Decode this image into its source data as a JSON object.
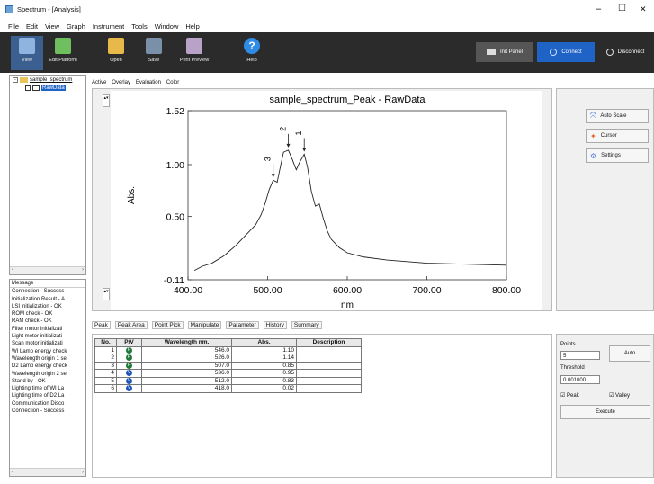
{
  "window": {
    "title": "Spectrum - [Analysis]",
    "min": "–",
    "max": "☐",
    "close": "✕"
  },
  "menu": [
    "File",
    "Edit",
    "View",
    "Graph",
    "Instrument",
    "Tools",
    "Window",
    "Help"
  ],
  "toolbar": {
    "view": "View",
    "edit_platform": "Edit Platform",
    "open": "Open",
    "save": "Save",
    "print_preview": "Print Preview",
    "help": "Help",
    "init_panel": "Init Panel",
    "connect": "Connect",
    "disconnect": "Disconnect"
  },
  "tree": {
    "root": "sample_spectrum",
    "child": "RawData"
  },
  "messages": {
    "header": "Message",
    "items": [
      "Connection - Success",
      "Initialization Result - A",
      "LSI initialization - OK",
      "ROM check - OK",
      "RAM check - OK",
      "Filter motor initializati",
      "Light motor initializati",
      "Scan motor initializati",
      "WI Lamp energy check",
      "Wavelength origin 1 se",
      "D2 Lamp energy check",
      "Wavelength origin 2 se",
      "Stand by - OK",
      "Lighting time of WI La",
      "Lighting time of D2 La",
      "Communication Disco",
      "Connection - Success"
    ]
  },
  "tabs": [
    "Active",
    "Overlay",
    "Evaluation",
    "Color"
  ],
  "side_buttons": {
    "auto_scale": "Auto Scale",
    "cursor": "Cursor",
    "settings": "Settings"
  },
  "chart_data": {
    "type": "line",
    "title": "sample_spectrum_Peak - RawData",
    "xlabel": "nm",
    "ylabel": "Abs.",
    "xlim": [
      400,
      800
    ],
    "ylim": [
      -0.11,
      1.52
    ],
    "x_ticks": [
      "400.00",
      "500.00",
      "600.00",
      "700.00",
      "800.00"
    ],
    "y_ticks": [
      "-0.11",
      "0.50",
      "1.00",
      "1.52"
    ],
    "series": [
      {
        "x": [
          408,
          418,
          430,
          445,
          460,
          475,
          485,
          492,
          497,
          502,
          507,
          512,
          516,
          520,
          526,
          531,
          536,
          540,
          546,
          550,
          555,
          560,
          565,
          570,
          575,
          580,
          590,
          600,
          620,
          650,
          700,
          750,
          800
        ],
        "y": [
          -0.02,
          0.02,
          0.05,
          0.12,
          0.22,
          0.34,
          0.42,
          0.52,
          0.63,
          0.76,
          0.85,
          0.83,
          0.98,
          1.12,
          1.14,
          1.05,
          0.95,
          1.02,
          1.1,
          0.98,
          0.74,
          0.6,
          0.62,
          0.48,
          0.36,
          0.28,
          0.2,
          0.15,
          0.11,
          0.08,
          0.05,
          0.04,
          0.03
        ]
      }
    ],
    "peak_labels": [
      {
        "label": "1",
        "x": 546,
        "y": 1.1
      },
      {
        "label": "2",
        "x": 526,
        "y": 1.14
      },
      {
        "label": "3",
        "x": 507,
        "y": 0.85
      }
    ]
  },
  "bottom_tabs": [
    "Peak",
    "Peak Area",
    "Point Pick",
    "Manipulate",
    "Parameter",
    "History",
    "Summary"
  ],
  "table": {
    "headers": [
      "No.",
      "P/V",
      "Wavelength nm.",
      "Abs.",
      "Description"
    ],
    "rows": [
      [
        "1",
        "P",
        "546.0",
        "1.10",
        ""
      ],
      [
        "2",
        "P",
        "526.0",
        "1.14",
        ""
      ],
      [
        "3",
        "P",
        "507.0",
        "0.85",
        ""
      ],
      [
        "4",
        "V",
        "536.0",
        "0.95",
        ""
      ],
      [
        "5",
        "V",
        "512.0",
        "0.83",
        ""
      ],
      [
        "6",
        "V",
        "418.0",
        "0.02",
        ""
      ]
    ]
  },
  "peak_panel": {
    "points_label": "Points",
    "points_value": "5",
    "auto": "Auto",
    "threshold_label": "Threshold",
    "threshold_value": "0.001000",
    "peak": "Peak",
    "valley": "Valley",
    "execute": "Execute"
  },
  "colors": {
    "toolbar_bg": "#2b2b2b",
    "connect_bg": "#1f63c7",
    "peak_green": "#1f7a3a",
    "valley_blue": "#1c56b8"
  }
}
